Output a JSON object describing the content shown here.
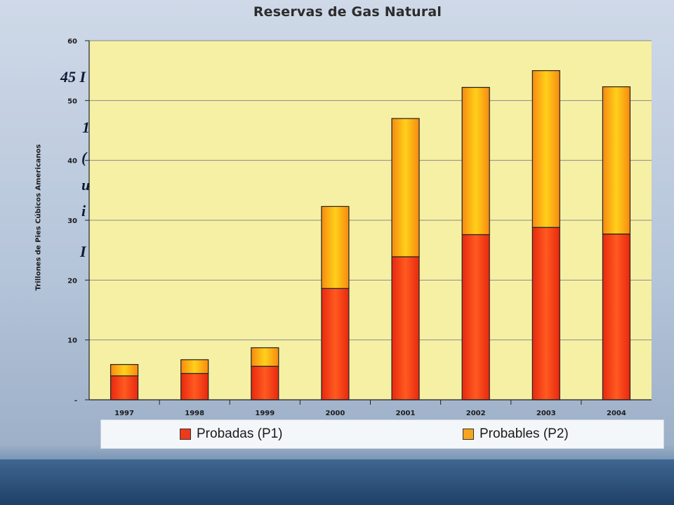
{
  "slide": {
    "overlay_texts": [
      "45 I",
      "1",
      "(",
      "u",
      "i",
      "I"
    ]
  },
  "chart_data": {
    "type": "bar",
    "stacked": true,
    "title": "Reservas de Gas Natural",
    "ylabel": "Trillones de Pies Cúbicos Americanos",
    "xlabel": "",
    "ylim": [
      0,
      60
    ],
    "yticks": [
      "-",
      "10",
      "20",
      "30",
      "40",
      "50",
      "60"
    ],
    "categories": [
      "1997",
      "1998",
      "1999",
      "2000",
      "2001",
      "2002",
      "2003",
      "2004"
    ],
    "series": [
      {
        "name": "Probadas (P1)",
        "color": "#ee3a1c",
        "values": [
          4.0,
          4.4,
          5.6,
          18.6,
          23.9,
          27.6,
          28.8,
          27.7
        ]
      },
      {
        "name": "Probables (P2)",
        "color": "#f7a51c",
        "values": [
          1.9,
          2.3,
          3.1,
          13.7,
          23.1,
          24.6,
          26.2,
          24.6
        ]
      }
    ],
    "grid": true,
    "plot_background": "#f6f0a4",
    "legend_position": "bottom"
  }
}
